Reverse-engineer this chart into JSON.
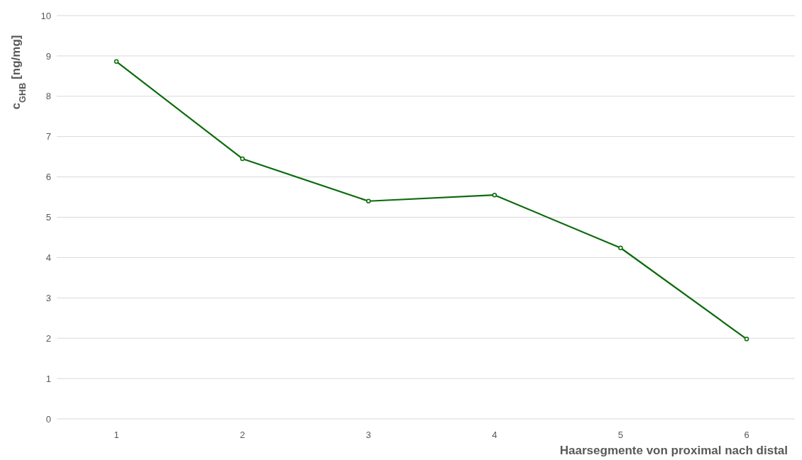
{
  "chart_data": {
    "type": "line",
    "xlabel": "Haarsegmente von proximal nach distal",
    "ylabel": "c$_{GHB}$ [ng/mg]",
    "categories": [
      "1",
      "2",
      "3",
      "4",
      "5",
      "6"
    ],
    "series": [
      {
        "color": "#0b6b0b",
        "values": [
          8.86,
          6.45,
          5.4,
          5.55,
          4.24,
          1.98
        ]
      }
    ],
    "ylim": [
      0,
      10
    ],
    "yticks": [
      0,
      1,
      2,
      3,
      4,
      5,
      6,
      7,
      8,
      9,
      10
    ],
    "grid": "y",
    "legend": false,
    "marker": "circle",
    "line_style": "solid"
  }
}
